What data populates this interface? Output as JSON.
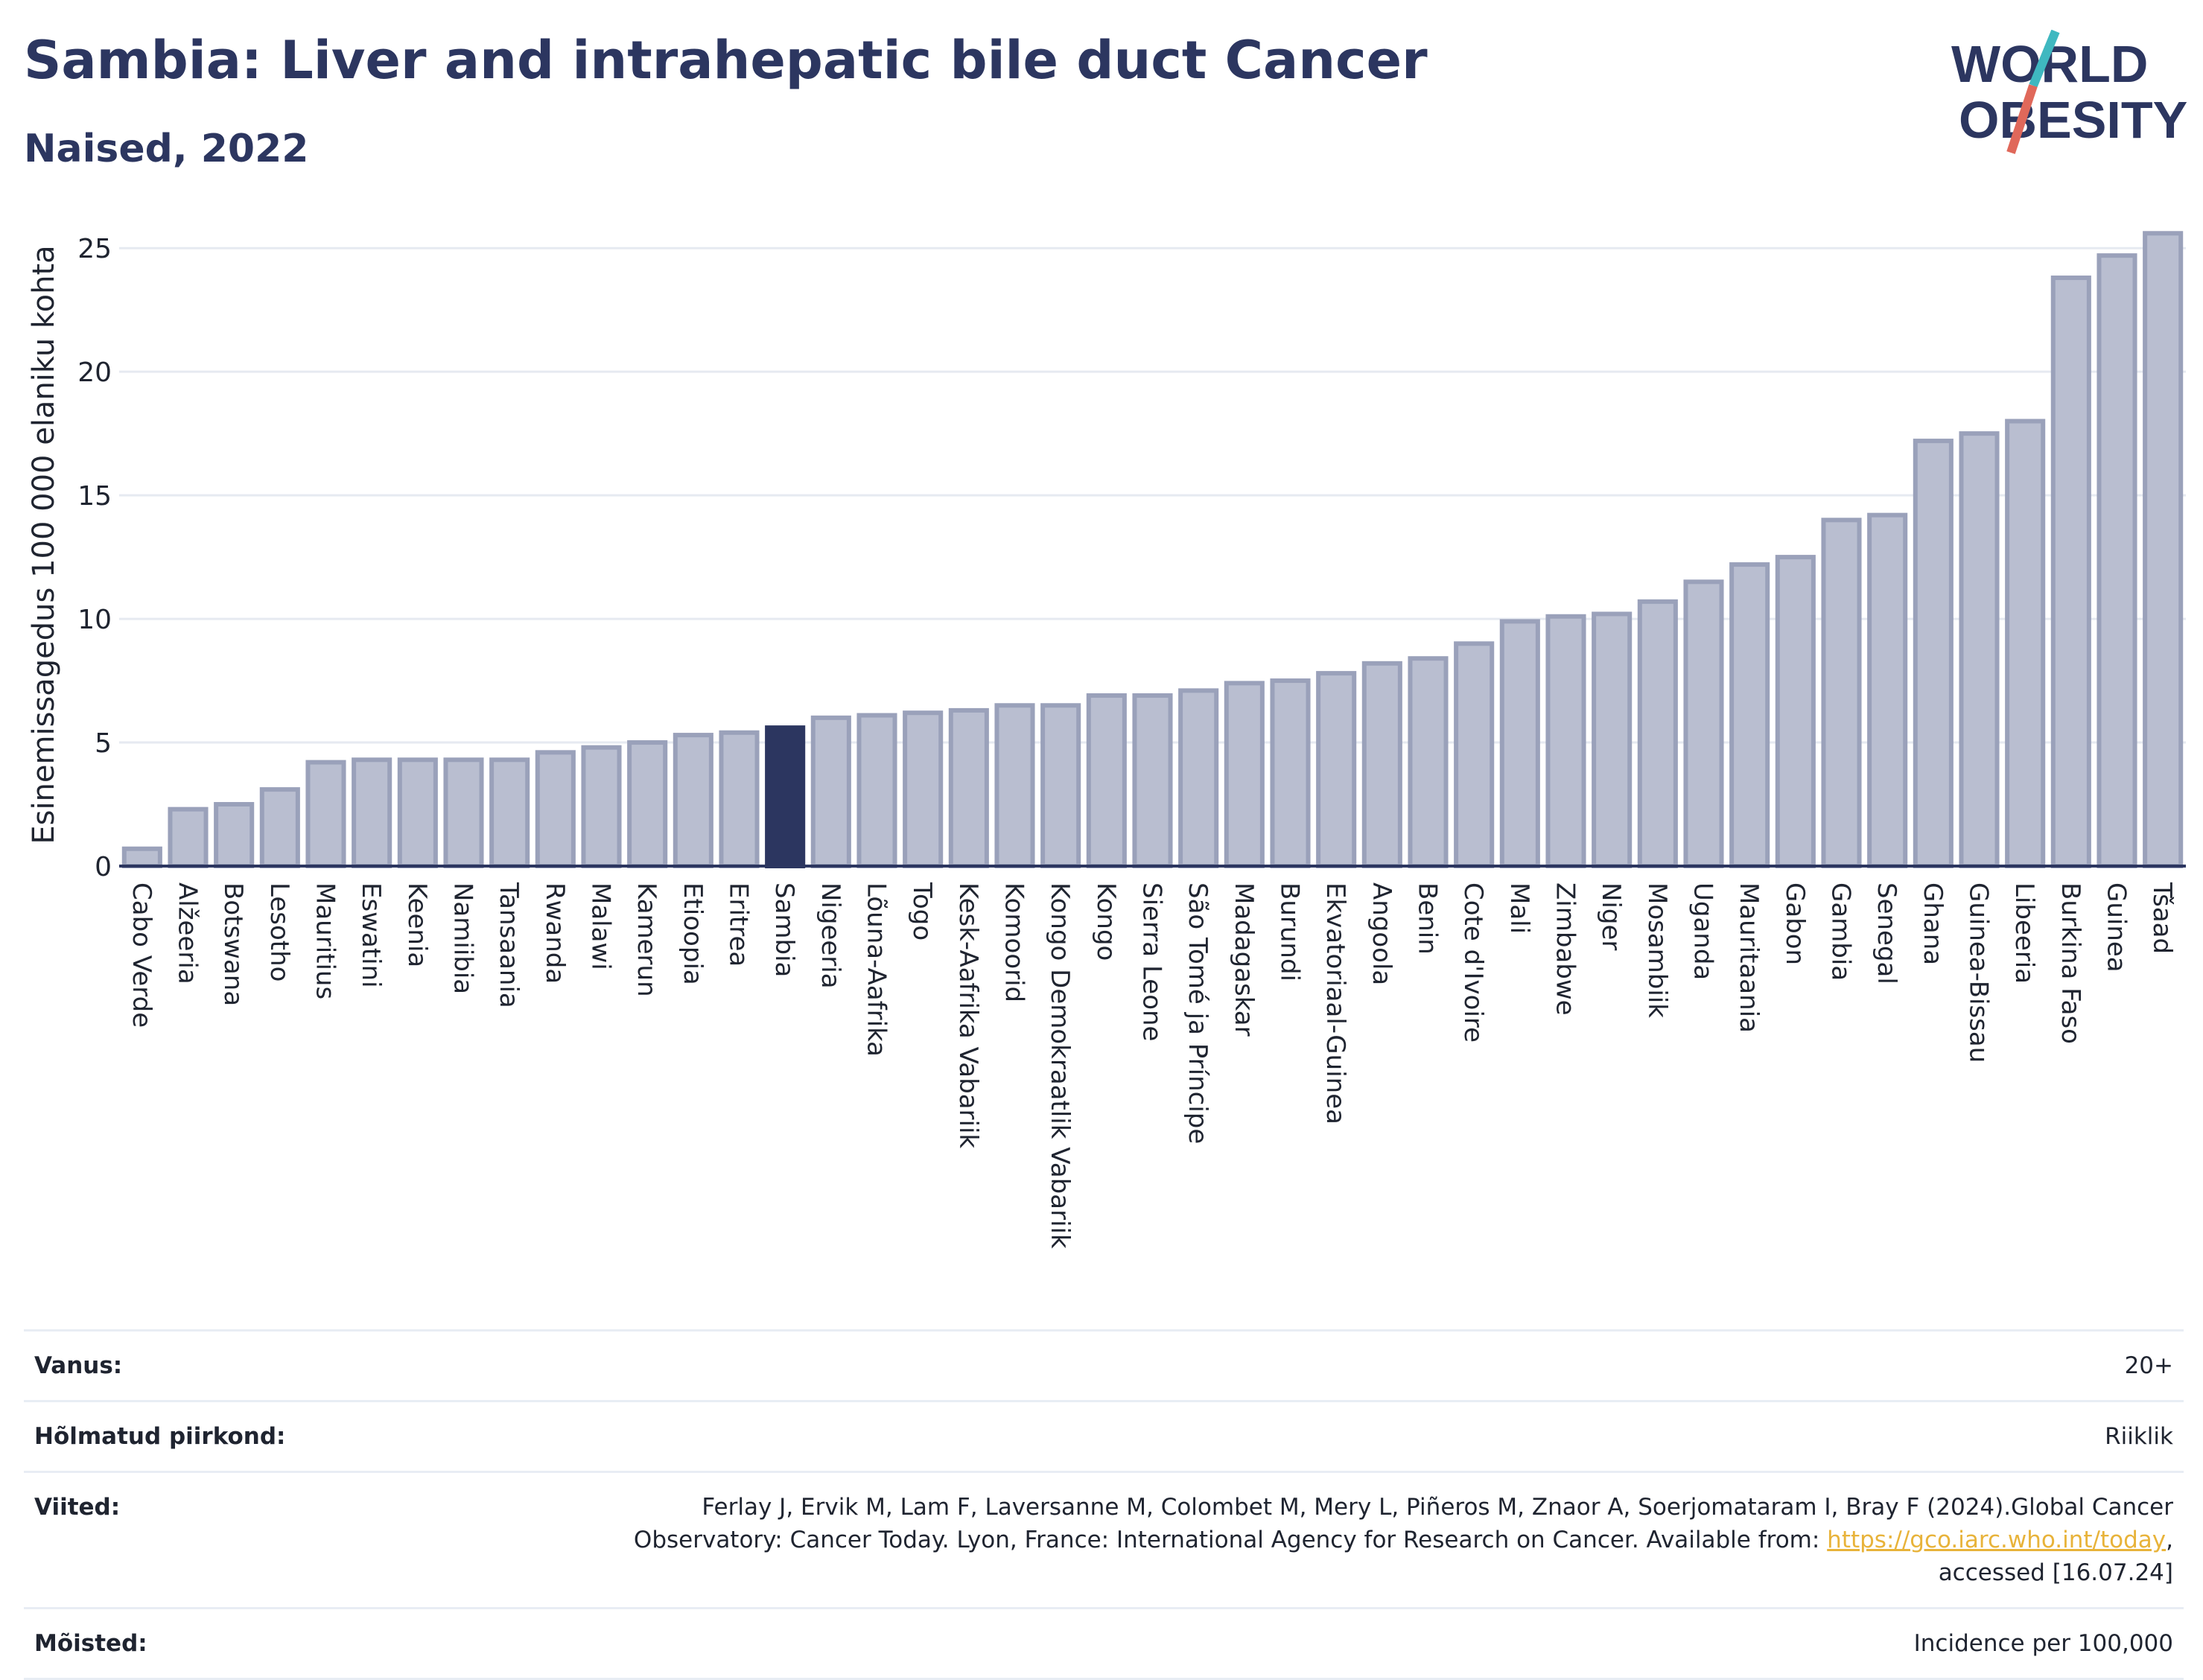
{
  "header": {
    "title": "Sambia: Liver and intrahepatic bile duct Cancer",
    "subtitle": "Naised, 2022"
  },
  "logo": {
    "line1": "WORLD",
    "line2": "OBESITY",
    "colors": {
      "text": "#2c3660",
      "slash_red": "#e0685a",
      "slash_teal": "#3fb8c0"
    }
  },
  "chart_data": {
    "type": "bar",
    "title": "Sambia: Liver and intrahepatic bile duct Cancer",
    "subtitle": "Naised, 2022",
    "xlabel": "",
    "ylabel": "Esinemissagedus 100 000 elaniku kohta",
    "ylim": [
      0,
      26
    ],
    "yticks": [
      0,
      5,
      10,
      15,
      20,
      25
    ],
    "grid": true,
    "highlight": "Sambia",
    "colors": {
      "bar": "#b9bed0",
      "bar_edge": "#9aa1ba",
      "highlight": "#2c3660"
    },
    "categories": [
      "Cabo Verde",
      "Alžeeria",
      "Botswana",
      "Lesotho",
      "Mauritius",
      "Eswatini",
      "Keenia",
      "Namiibia",
      "Tansaania",
      "Rwanda",
      "Malawi",
      "Kamerun",
      "Etioopia",
      "Eritrea",
      "Sambia",
      "Nigeeria",
      "Lõuna-Aafrika",
      "Togo",
      "Kesk-Aafrika Vabariik",
      "Komoorid",
      "Kongo Demokraatlik Vabariik",
      "Kongo",
      "Sierra Leone",
      "São Tomé ja Príncipe",
      "Madagaskar",
      "Burundi",
      "Ekvatoriaal-Guinea",
      "Angoola",
      "Benin",
      "Cote d'Ivoire",
      "Mali",
      "Zimbabwe",
      "Niger",
      "Mosambiik",
      "Uganda",
      "Mauritaania",
      "Gabon",
      "Gambia",
      "Senegal",
      "Ghana",
      "Guinea-Bissau",
      "Libeeria",
      "Burkina Faso",
      "Guinea",
      "Tšaad"
    ],
    "values": [
      0.7,
      2.3,
      2.5,
      3.1,
      4.2,
      4.3,
      4.3,
      4.3,
      4.3,
      4.6,
      4.8,
      5.0,
      5.3,
      5.4,
      5.6,
      6.0,
      6.1,
      6.2,
      6.3,
      6.5,
      6.5,
      6.9,
      6.9,
      7.1,
      7.4,
      7.5,
      7.8,
      8.2,
      8.4,
      9.0,
      9.9,
      10.1,
      10.2,
      10.7,
      11.5,
      12.2,
      12.5,
      14.0,
      14.2,
      17.2,
      17.5,
      18.0,
      23.8,
      24.7,
      25.6
    ]
  },
  "meta": {
    "rows": [
      {
        "label": "Vanus:",
        "value": "20+"
      },
      {
        "label": "Hõlmatud piirkond:",
        "value": "Riiklik"
      },
      {
        "label": "Viited:",
        "value_lines": [
          "Ferlay J, Ervik M, Lam F, Laversanne M, Colombet M, Mery L, Piñeros M, Znaor A, Soerjomataram I, Bray F (2024).Global Cancer",
          "Observatory: Cancer Today. Lyon, France: International Agency for Research on Cancer. Available from: ",
          "https://gco.iarc.who.int/today",
          ",",
          "accessed [16.07.24]"
        ]
      },
      {
        "label": "Mõisted:",
        "value": "Incidence per 100,000"
      }
    ]
  }
}
